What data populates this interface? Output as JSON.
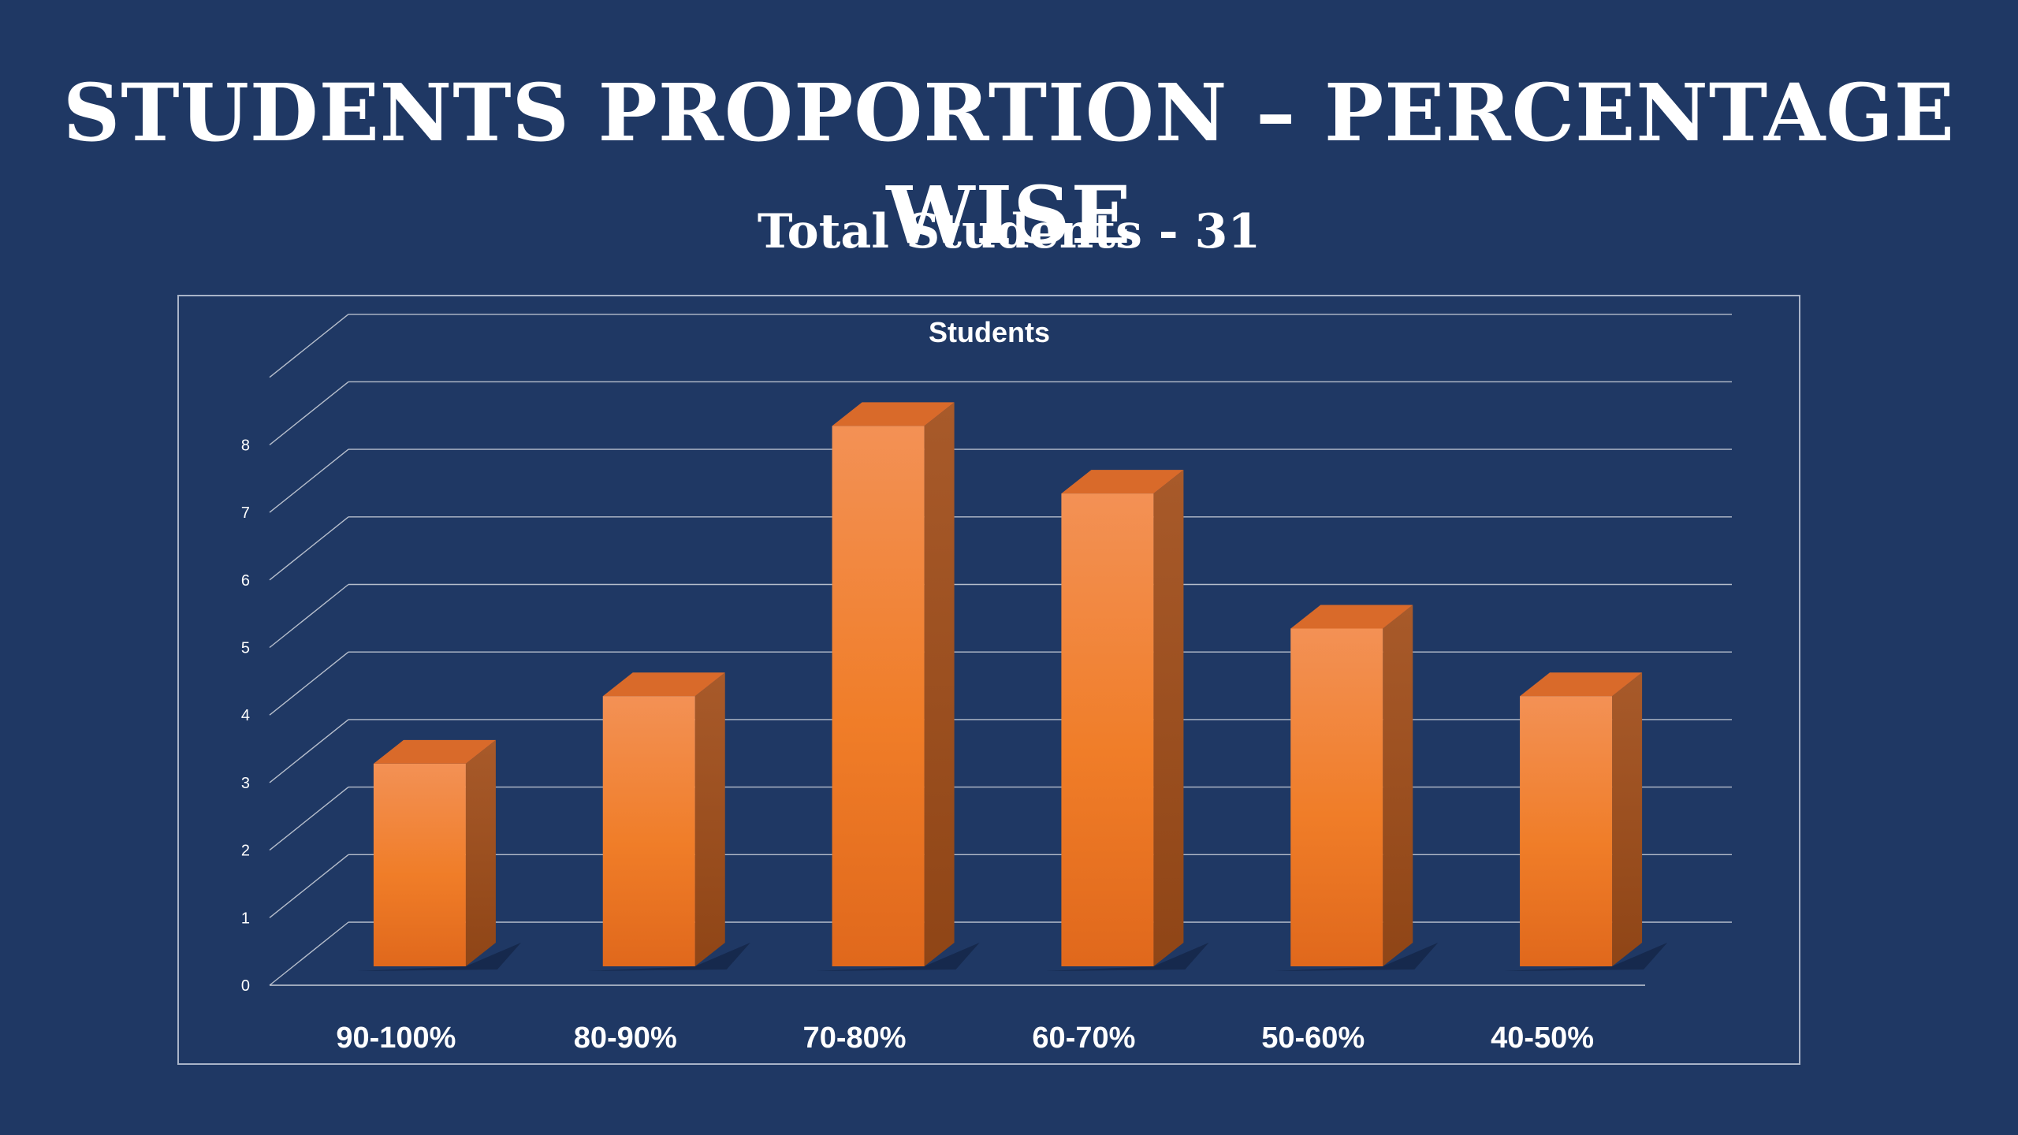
{
  "slide": {
    "title": "STUDENTS PROPORTION – PERCENTAGE WISE",
    "subtitle": "Total Students - 31"
  },
  "colors": {
    "background": "#1f3864",
    "bar_front": "#f07d28",
    "bar_side": "#a8521a",
    "bar_top": "#d96a2a",
    "gridline": "#c7cdd8",
    "text": "#ffffff"
  },
  "chart_data": {
    "type": "bar",
    "style": "3d-column",
    "title": "Students",
    "categories": [
      "90-100%",
      "80-90%",
      "70-80%",
      "60-70%",
      "50-60%",
      "40-50%"
    ],
    "series": [
      {
        "name": "Students",
        "values": [
          3,
          4,
          8,
          7,
          5,
          4
        ]
      }
    ],
    "xlabel": "",
    "ylabel": "",
    "ylim": [
      0,
      9
    ],
    "yticks": [
      "0",
      "1",
      "2",
      "3",
      "4",
      "5",
      "6",
      "7",
      "8"
    ],
    "grid": true,
    "legend": "none"
  }
}
